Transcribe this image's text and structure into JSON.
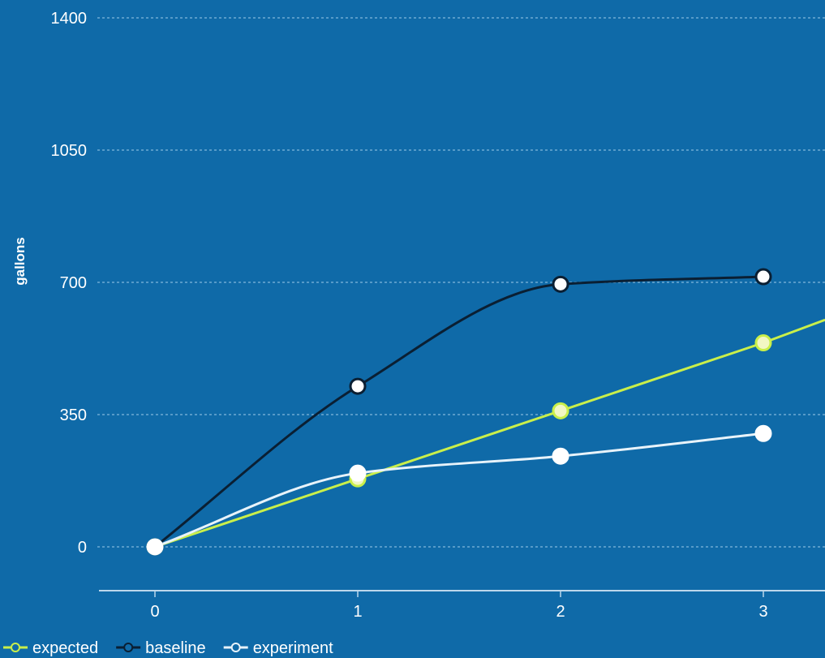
{
  "chart_data": {
    "type": "line",
    "ylabel": "gallons",
    "xlabel": "",
    "x": [
      0,
      1,
      2,
      3
    ],
    "x_ticks": [
      "0",
      "1",
      "2",
      "3"
    ],
    "y_ticks": [
      "0",
      "350",
      "700",
      "1050",
      "1400"
    ],
    "ylim": [
      0,
      1400
    ],
    "grid": "horizontal dashed",
    "legend_position": "bottom-left",
    "series": [
      {
        "name": "expected",
        "values": [
          0,
          180,
          360,
          540
        ],
        "extends_beyond_last_point_to": [
          3.3,
          600
        ],
        "curve": "linear",
        "color": "#c9ef4a",
        "marker_fill": "#f2f7c4",
        "marker_stroke": "#c9ef4a"
      },
      {
        "name": "baseline",
        "values": [
          0,
          425,
          695,
          715
        ],
        "curve": "smooth",
        "color": "#0a1f33",
        "marker_fill": "#ffffff",
        "marker_stroke": "#0a1f33"
      },
      {
        "name": "experiment",
        "values": [
          0,
          195,
          240,
          300
        ],
        "curve": "smooth",
        "color": "#e8f3fa",
        "marker_fill": "#ffffff",
        "marker_stroke": "#ffffff"
      }
    ],
    "colors": {
      "background": "#0f6aa8",
      "grid": "#6fa9d3",
      "axis": "#bcd8ec",
      "text": "#ffffff"
    }
  }
}
